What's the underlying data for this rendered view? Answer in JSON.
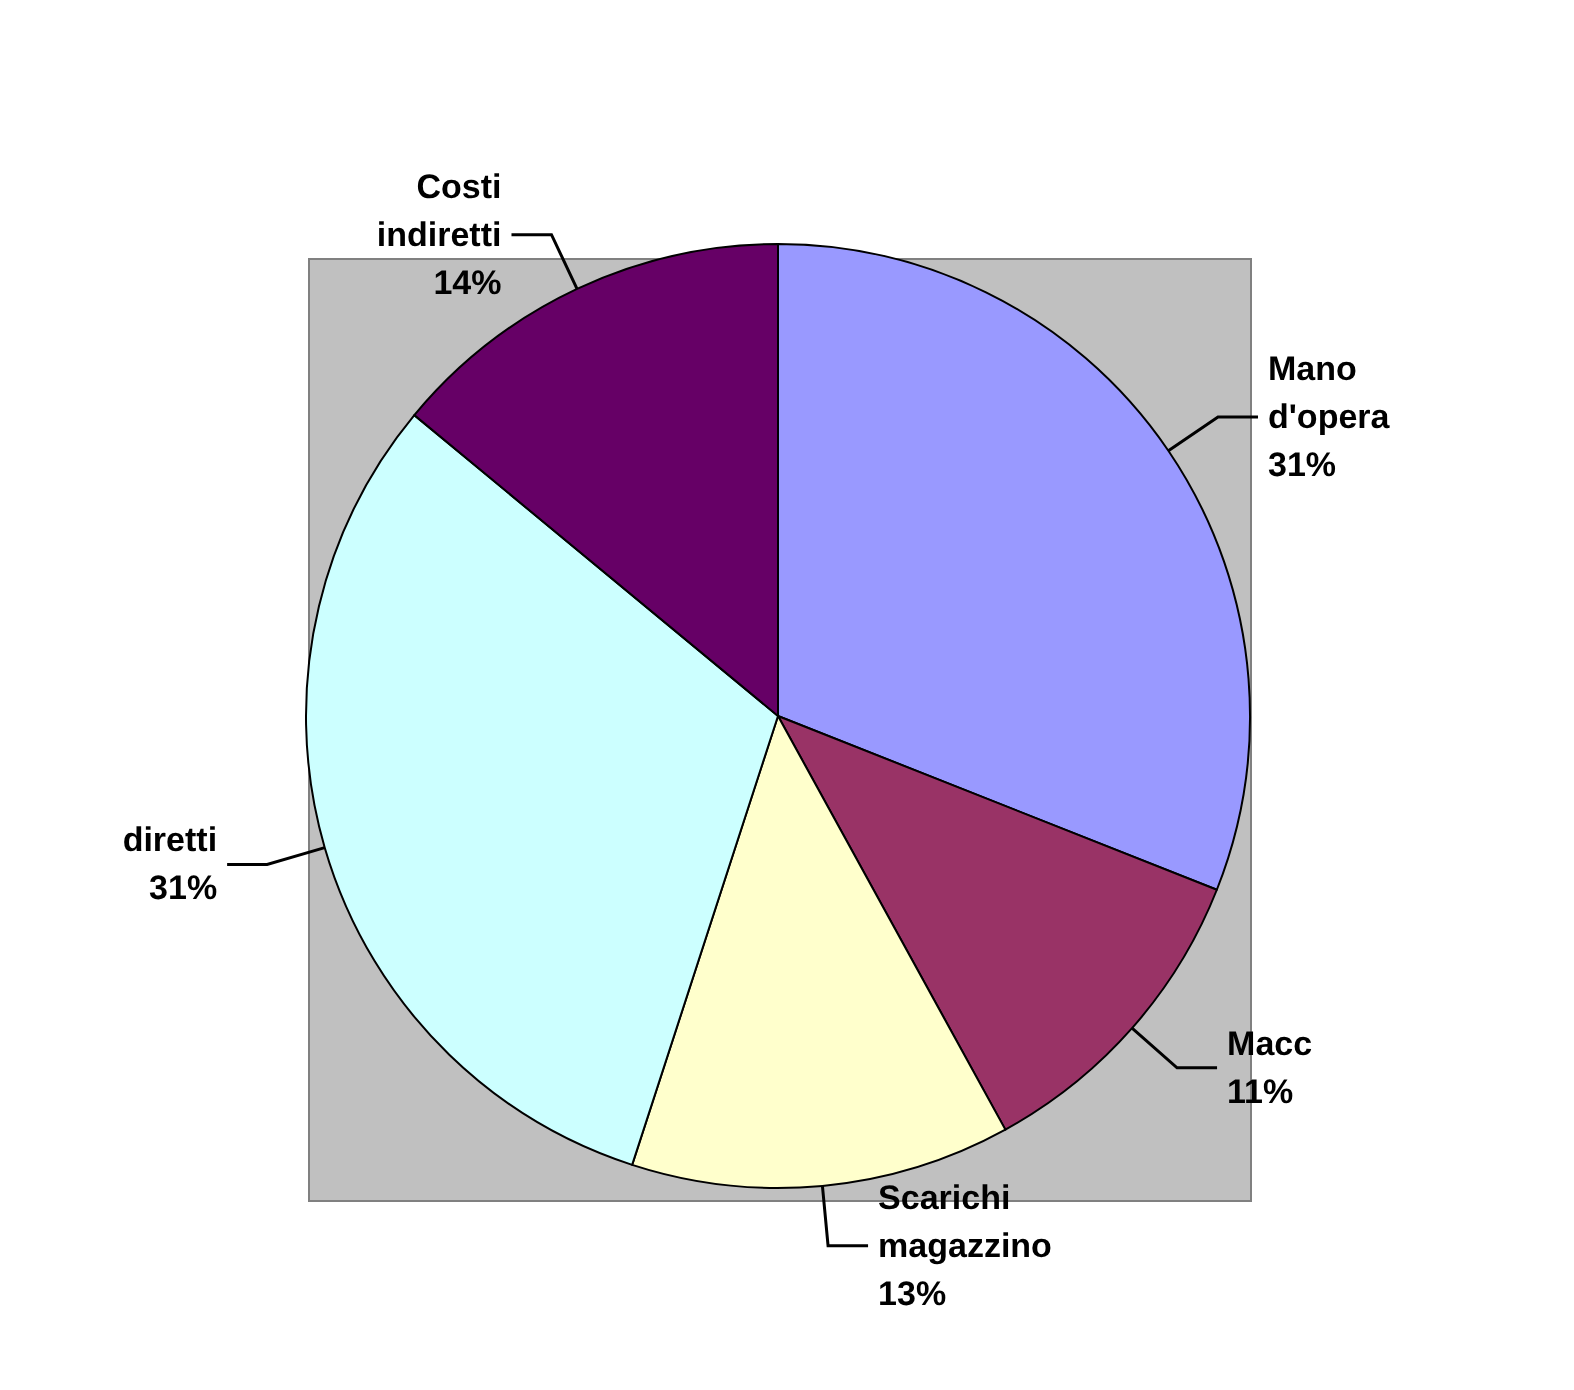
{
  "chart_data": {
    "type": "pie",
    "categories": [
      "Mano d'opera",
      "Macc",
      "Scarichi magazzino",
      "diretti",
      "Costi indiretti"
    ],
    "values": [
      31,
      11,
      13,
      31,
      14
    ],
    "value_labels": [
      "31%",
      "11%",
      "13%",
      "31%",
      "14%"
    ],
    "colors": [
      "#9999ff",
      "#993366",
      "#ffffcc",
      "#ccffff",
      "#660066"
    ],
    "legend": false
  }
}
